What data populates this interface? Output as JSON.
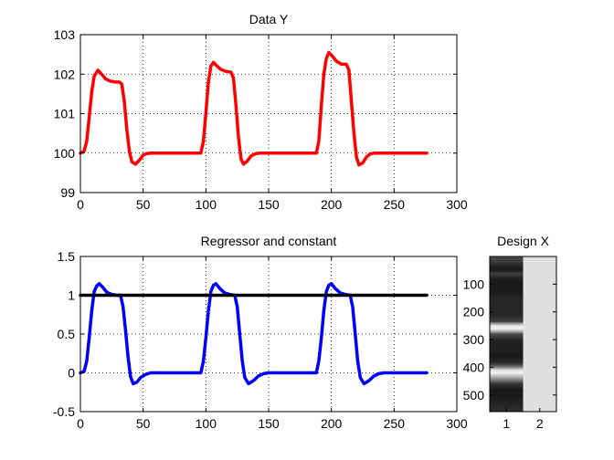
{
  "chart_data": [
    {
      "type": "line",
      "title": "Data Y",
      "xlabel": "",
      "ylabel": "",
      "xlim": [
        0,
        300
      ],
      "ylim": [
        99,
        103
      ],
      "xticks": [
        0,
        50,
        100,
        150,
        200,
        250,
        300
      ],
      "yticks": [
        99,
        100,
        101,
        102,
        103
      ],
      "grid": "dotted",
      "series": [
        {
          "color": "#ff0000",
          "x": [
            0,
            3,
            5,
            7,
            9,
            11,
            14,
            17,
            20,
            24,
            28,
            31,
            33,
            35,
            37,
            39,
            41,
            44,
            47,
            50,
            53,
            56,
            60,
            80,
            96,
            98,
            100,
            102,
            104,
            106,
            109,
            112,
            116,
            120,
            122,
            124,
            126,
            128,
            130,
            133,
            136,
            140,
            143,
            146,
            150,
            170,
            188,
            190,
            192,
            194,
            196,
            198,
            201,
            204,
            208,
            212,
            214,
            216,
            218,
            220,
            222,
            225,
            228,
            231,
            234,
            237,
            240,
            260,
            276
          ],
          "y": [
            100.0,
            100.05,
            100.3,
            100.9,
            101.55,
            101.95,
            102.1,
            102.0,
            101.88,
            101.82,
            101.8,
            101.8,
            101.75,
            101.3,
            100.6,
            100.05,
            99.78,
            99.72,
            99.82,
            99.95,
            99.99,
            100.0,
            100.0,
            100.0,
            100.0,
            100.3,
            101.0,
            101.8,
            102.2,
            102.3,
            102.2,
            102.12,
            102.07,
            102.05,
            101.9,
            101.2,
            100.4,
            99.85,
            99.72,
            99.8,
            99.93,
            99.99,
            100.0,
            100.0,
            100.0,
            100.0,
            100.0,
            100.3,
            101.2,
            102.0,
            102.4,
            102.55,
            102.45,
            102.33,
            102.25,
            102.25,
            102.1,
            101.3,
            100.5,
            99.9,
            99.7,
            99.75,
            99.9,
            99.98,
            100.0,
            100.0,
            100.0,
            100.0,
            100.0
          ]
        }
      ]
    },
    {
      "type": "line",
      "title": "Regressor and constant",
      "xlabel": "",
      "ylabel": "",
      "xlim": [
        0,
        300
      ],
      "ylim": [
        -0.5,
        1.5
      ],
      "xticks": [
        0,
        50,
        100,
        150,
        200,
        250,
        300
      ],
      "yticks": [
        -0.5,
        0,
        0.5,
        1,
        1.5
      ],
      "grid": "dotted",
      "series": [
        {
          "color": "#0000ff",
          "x": [
            0,
            3,
            5,
            7,
            9,
            11,
            13,
            15,
            18,
            21,
            25,
            29,
            32,
            34,
            36,
            38,
            40,
            42,
            45,
            48,
            52,
            56,
            60,
            80,
            96,
            98,
            100,
            102,
            104,
            106,
            108,
            111,
            115,
            119,
            123,
            125,
            127,
            129,
            131,
            134,
            138,
            142,
            146,
            150,
            170,
            188,
            190,
            192,
            194,
            196,
            198,
            200,
            203,
            207,
            211,
            215,
            217,
            219,
            221,
            223,
            226,
            230,
            234,
            238,
            242,
            260,
            276
          ],
          "y": [
            0.0,
            0.02,
            0.15,
            0.45,
            0.8,
            1.05,
            1.12,
            1.15,
            1.1,
            1.04,
            1.01,
            1.0,
            1.0,
            0.85,
            0.55,
            0.2,
            -0.05,
            -0.14,
            -0.12,
            -0.06,
            -0.02,
            0.0,
            0.0,
            0.0,
            0.0,
            0.15,
            0.45,
            0.8,
            1.05,
            1.13,
            1.15,
            1.09,
            1.03,
            1.01,
            1.0,
            0.85,
            0.5,
            0.15,
            -0.06,
            -0.14,
            -0.1,
            -0.04,
            -0.01,
            0.0,
            0.0,
            0.0,
            0.15,
            0.45,
            0.8,
            1.05,
            1.13,
            1.15,
            1.09,
            1.03,
            1.01,
            1.0,
            0.85,
            0.5,
            0.15,
            -0.06,
            -0.14,
            -0.1,
            -0.04,
            -0.01,
            0.0,
            0.0,
            0.0
          ]
        },
        {
          "color": "#000000",
          "x": [
            0,
            276
          ],
          "y": [
            1,
            1
          ]
        }
      ]
    },
    {
      "type": "heatmap",
      "title": "Design X",
      "xlabel": "",
      "ylabel": "",
      "xticks": [
        1,
        2
      ],
      "yticks": [
        100,
        200,
        300,
        400,
        500
      ],
      "ylim": [
        0,
        560
      ],
      "yaxis_side": "left",
      "columns": [
        {
          "colormap": "gray",
          "x": [
            0,
            20,
            30,
            40,
            48,
            55,
            60,
            70,
            80,
            95,
            100,
            110,
            118,
            125,
            130,
            140,
            150,
            170,
            190,
            200,
            210,
            235,
            240,
            250,
            260,
            270,
            280,
            300,
            320,
            340,
            350,
            360,
            370,
            380,
            390,
            400,
            410,
            420,
            440,
            460,
            480,
            500,
            520,
            540,
            560
          ],
          "intensity": [
            0.3,
            0.22,
            0.16,
            0.12,
            0.1,
            0.15,
            0.25,
            0.2,
            0.12,
            0.1,
            0.1,
            0.1,
            0.1,
            0.1,
            0.1,
            0.12,
            0.15,
            0.15,
            0.15,
            0.15,
            0.15,
            0.25,
            0.5,
            0.9,
            0.95,
            0.7,
            0.3,
            0.15,
            0.12,
            0.12,
            0.1,
            0.1,
            0.12,
            0.15,
            0.25,
            0.5,
            0.88,
            0.95,
            0.6,
            0.2,
            0.1,
            0.1,
            0.12,
            0.15,
            0.18
          ]
        },
        {
          "constant_intensity": 0.88
        }
      ]
    }
  ]
}
